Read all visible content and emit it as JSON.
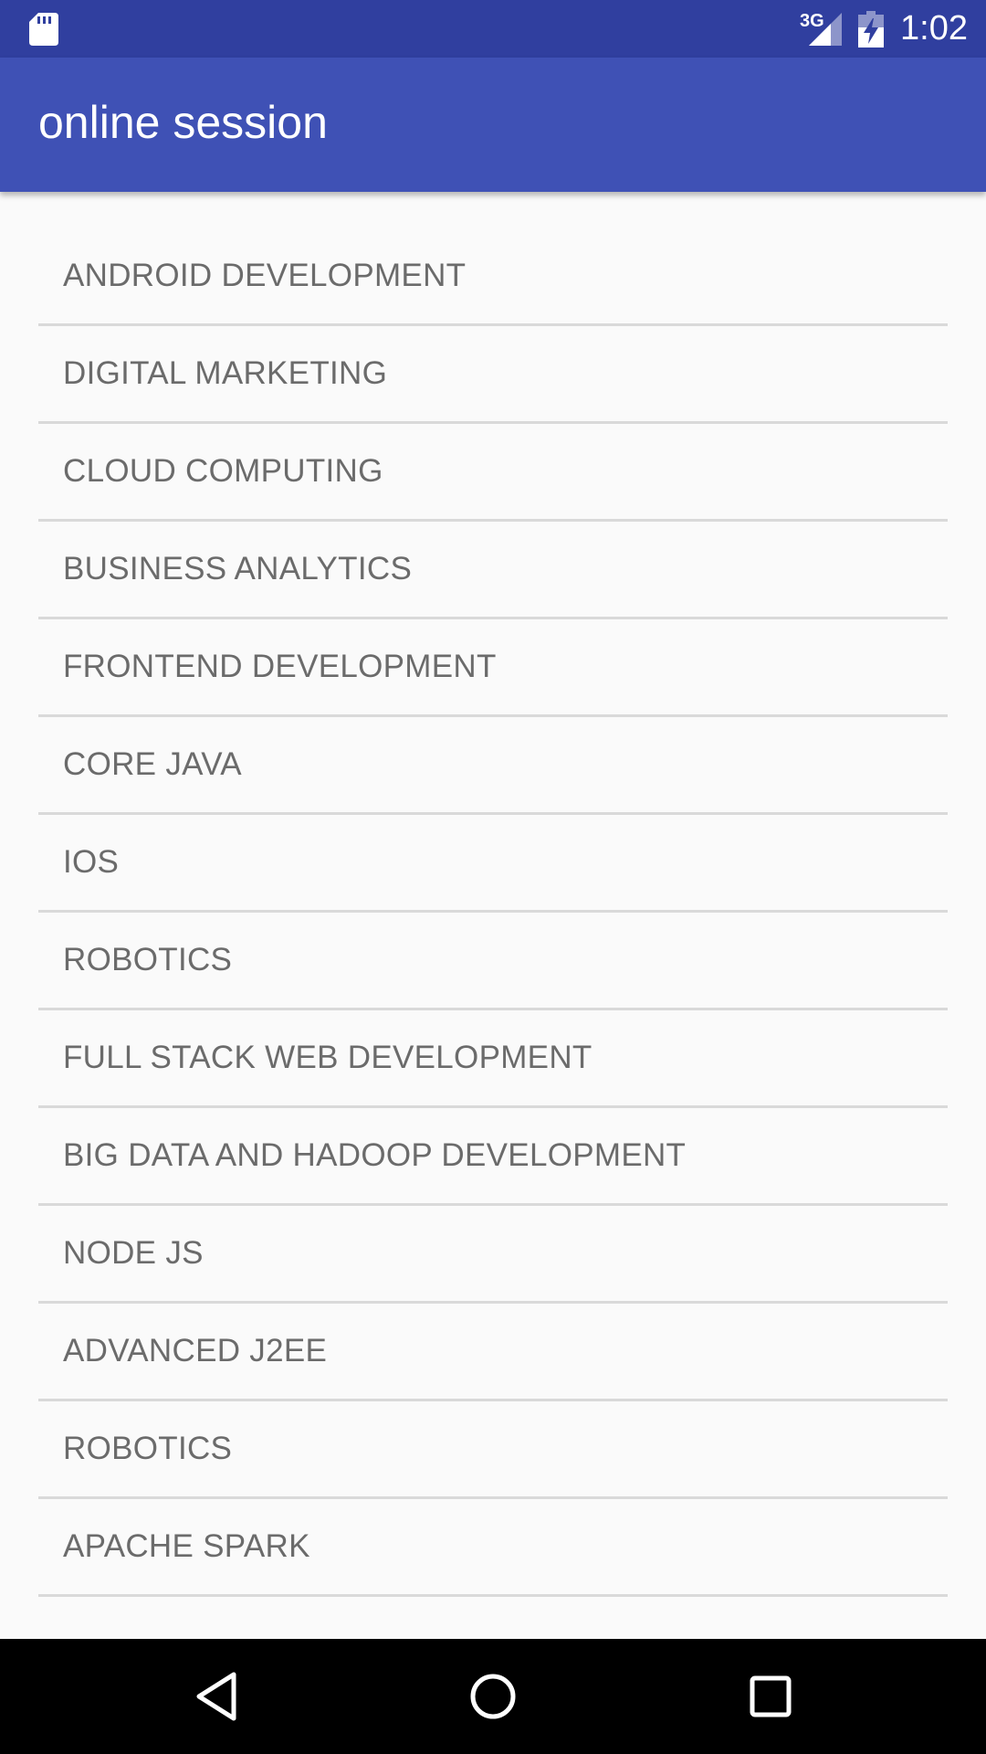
{
  "status_bar": {
    "network_label": "3G",
    "time": "1:02",
    "icons": [
      "sd-card-icon",
      "signal-icon",
      "battery-charging-icon"
    ]
  },
  "app_bar": {
    "title": "online session",
    "color": "#3f51b5"
  },
  "courses": [
    {
      "label": "ANDROID DEVELOPMENT"
    },
    {
      "label": "DIGITAL MARKETING"
    },
    {
      "label": "CLOUD COMPUTING"
    },
    {
      "label": "BUSINESS ANALYTICS"
    },
    {
      "label": "FRONTEND DEVELOPMENT"
    },
    {
      "label": "CORE JAVA"
    },
    {
      "label": "IOS"
    },
    {
      "label": "ROBOTICS"
    },
    {
      "label": "FULL STACK WEB DEVELOPMENT"
    },
    {
      "label": "BIG DATA AND HADOOP DEVELOPMENT"
    },
    {
      "label": "NODE JS"
    },
    {
      "label": "ADVANCED J2EE"
    },
    {
      "label": "ROBOTICS"
    },
    {
      "label": "APACHE SPARK"
    }
  ],
  "nav_bar": {
    "icons": [
      "back-icon",
      "home-icon",
      "recents-icon"
    ]
  },
  "colors": {
    "status_bar": "#303f9f",
    "app_bar": "#3f51b5",
    "background": "#fafafa",
    "item_text": "#6b6b6b",
    "divider": "#d9d9d9"
  }
}
